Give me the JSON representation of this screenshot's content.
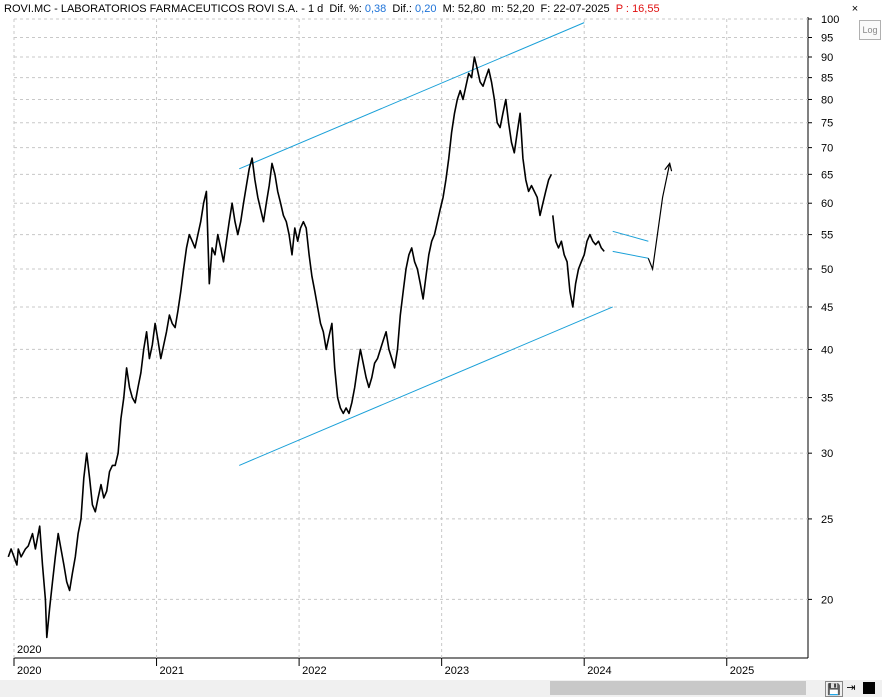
{
  "header": {
    "title": "ROVI.MC - LABORATORIOS FARMACEUTICOS ROVI S.A. -  1 d",
    "dif_pct_label": "Dif. %:",
    "dif_pct": "0,38",
    "dif_label": "Dif.:",
    "dif": "0,20",
    "max_label": "M:",
    "max": "52,80",
    "min_label": "m:",
    "min": "52,20",
    "date_label": "F:",
    "date": "22-07-2025",
    "p_label": "P :",
    "p": "16,55"
  },
  "controls": {
    "close": "×",
    "log": "Log",
    "save_icon": "save-icon",
    "pin_icon": "pin-icon"
  },
  "colors": {
    "price": "#000000",
    "trendline": "#1aa0d8",
    "grid": "#c8c8c8",
    "accent": "#1e73d8"
  },
  "chart_data": {
    "type": "line",
    "scale": "log",
    "ylim": [
      17,
      100
    ],
    "yticks": [
      20,
      25,
      30,
      35,
      40,
      45,
      50,
      55,
      60,
      65,
      70,
      75,
      80,
      85,
      90,
      95,
      100
    ],
    "xlim": [
      2020.0,
      2025.57
    ],
    "xticks": [
      {
        "x": 2020.0,
        "label": "2020"
      },
      {
        "x": 2021.0,
        "label": "2021"
      },
      {
        "x": 2022.0,
        "label": "2022"
      },
      {
        "x": 2023.0,
        "label": "2023"
      },
      {
        "x": 2024.0,
        "label": "2024"
      },
      {
        "x": 2025.0,
        "label": "2025"
      }
    ],
    "corner_label": "2020",
    "grid": true,
    "series": [
      {
        "points": [
          [
            1.96,
            22.5
          ],
          [
            1.98,
            23
          ],
          [
            2.0,
            22.5
          ],
          [
            2.02,
            22
          ],
          [
            2.03,
            23
          ],
          [
            2.05,
            22.5
          ],
          [
            2.08,
            23
          ],
          [
            2.1,
            23.2
          ],
          [
            2.13,
            24
          ],
          [
            2.15,
            23
          ],
          [
            2.18,
            24.5
          ],
          [
            2.2,
            22
          ],
          [
            2.22,
            20
          ],
          [
            2.23,
            18
          ],
          [
            2.25,
            19.5
          ],
          [
            2.27,
            21
          ],
          [
            2.29,
            22.5
          ],
          [
            2.31,
            24
          ],
          [
            2.33,
            23
          ],
          [
            2.35,
            22
          ],
          [
            2.37,
            21
          ],
          [
            2.39,
            20.5
          ],
          [
            2.41,
            21.5
          ],
          [
            2.43,
            22.5
          ],
          [
            2.45,
            24
          ],
          [
            2.47,
            25
          ],
          [
            2.49,
            28
          ],
          [
            2.51,
            30
          ],
          [
            2.53,
            28
          ],
          [
            2.55,
            26
          ],
          [
            2.57,
            25.5
          ],
          [
            2.59,
            26.5
          ],
          [
            2.61,
            27.5
          ],
          [
            2.63,
            26.5
          ],
          [
            2.65,
            27
          ],
          [
            2.67,
            28.5
          ],
          [
            2.69,
            29
          ],
          [
            2.71,
            29
          ],
          [
            2.73,
            30
          ],
          [
            2.75,
            33
          ],
          [
            2.77,
            35
          ],
          [
            2.79,
            38
          ],
          [
            2.81,
            36
          ],
          [
            2.83,
            35
          ],
          [
            2.85,
            34.5
          ],
          [
            2.87,
            36
          ],
          [
            2.89,
            37.5
          ],
          [
            2.91,
            40
          ],
          [
            2.93,
            42
          ],
          [
            2.95,
            39
          ],
          [
            2.97,
            40.5
          ],
          [
            2.99,
            43
          ],
          [
            3.01,
            41
          ],
          [
            3.03,
            39
          ],
          [
            3.05,
            40.5
          ],
          [
            3.07,
            42
          ],
          [
            3.09,
            44
          ],
          [
            3.11,
            43
          ],
          [
            3.13,
            42.5
          ],
          [
            3.15,
            44.5
          ],
          [
            3.17,
            47
          ],
          [
            3.19,
            50
          ],
          [
            3.21,
            53
          ],
          [
            3.23,
            55
          ],
          [
            3.25,
            54
          ],
          [
            3.27,
            53
          ],
          [
            3.29,
            55
          ],
          [
            3.31,
            57
          ],
          [
            3.33,
            60
          ],
          [
            3.35,
            62
          ],
          [
            3.37,
            48
          ],
          [
            3.39,
            53
          ],
          [
            3.41,
            52
          ],
          [
            3.43,
            55
          ],
          [
            3.45,
            53
          ],
          [
            3.47,
            51
          ],
          [
            3.49,
            54
          ],
          [
            3.51,
            57
          ],
          [
            3.53,
            60
          ],
          [
            3.55,
            57
          ],
          [
            3.57,
            55
          ],
          [
            3.59,
            57
          ],
          [
            3.61,
            60
          ],
          [
            3.63,
            63
          ],
          [
            3.65,
            66
          ],
          [
            3.67,
            68
          ],
          [
            3.69,
            64
          ],
          [
            3.71,
            61
          ],
          [
            3.73,
            59
          ],
          [
            3.75,
            57
          ],
          [
            3.77,
            60
          ],
          [
            3.79,
            63
          ],
          [
            3.81,
            67
          ],
          [
            3.83,
            65
          ],
          [
            3.85,
            62
          ],
          [
            3.87,
            60
          ],
          [
            3.89,
            58
          ],
          [
            3.91,
            57
          ],
          [
            3.93,
            55
          ],
          [
            3.95,
            52
          ],
          [
            3.97,
            56
          ],
          [
            3.99,
            54
          ],
          [
            4.01,
            56
          ],
          [
            4.03,
            57
          ],
          [
            4.05,
            56
          ],
          [
            4.07,
            52
          ],
          [
            4.09,
            49
          ],
          [
            4.11,
            47
          ],
          [
            4.13,
            45
          ],
          [
            4.15,
            43
          ],
          [
            4.17,
            42
          ],
          [
            4.19,
            40
          ],
          [
            4.21,
            41.5
          ],
          [
            4.23,
            43
          ],
          [
            4.25,
            38
          ],
          [
            4.27,
            35
          ],
          [
            4.29,
            34
          ],
          [
            4.31,
            33.5
          ],
          [
            4.33,
            34
          ],
          [
            4.35,
            33.5
          ],
          [
            4.37,
            34.5
          ],
          [
            4.39,
            36
          ],
          [
            4.41,
            38
          ],
          [
            4.43,
            40
          ],
          [
            4.45,
            38.5
          ],
          [
            4.47,
            37
          ],
          [
            4.49,
            36
          ],
          [
            4.51,
            37
          ],
          [
            4.53,
            38.5
          ],
          [
            4.55,
            39
          ],
          [
            4.57,
            40
          ],
          [
            4.59,
            41
          ],
          [
            4.61,
            42
          ],
          [
            4.63,
            40
          ],
          [
            4.65,
            39
          ],
          [
            4.67,
            38
          ],
          [
            4.69,
            40
          ],
          [
            4.71,
            44
          ],
          [
            4.73,
            47
          ],
          [
            4.75,
            50
          ],
          [
            4.77,
            52
          ],
          [
            4.79,
            53
          ],
          [
            4.81,
            51
          ],
          [
            4.83,
            50
          ],
          [
            4.85,
            48
          ],
          [
            4.87,
            46
          ],
          [
            4.89,
            49
          ],
          [
            4.91,
            52
          ],
          [
            4.93,
            54
          ],
          [
            4.95,
            55
          ],
          [
            4.97,
            57
          ],
          [
            4.99,
            59
          ],
          [
            5.01,
            61
          ],
          [
            5.03,
            64
          ],
          [
            5.05,
            68
          ],
          [
            5.07,
            73
          ],
          [
            5.09,
            77
          ],
          [
            5.11,
            80
          ],
          [
            5.13,
            82
          ],
          [
            5.15,
            80
          ],
          [
            5.17,
            83
          ],
          [
            5.19,
            86
          ],
          [
            5.21,
            85
          ],
          [
            5.23,
            90
          ],
          [
            5.25,
            87
          ],
          [
            5.27,
            84
          ],
          [
            5.29,
            83
          ],
          [
            5.31,
            85
          ],
          [
            5.33,
            87
          ],
          [
            5.35,
            84
          ],
          [
            5.37,
            80
          ],
          [
            5.39,
            75
          ],
          [
            5.41,
            74
          ],
          [
            5.43,
            77
          ],
          [
            5.45,
            80
          ],
          [
            5.47,
            75
          ],
          [
            5.49,
            71
          ],
          [
            5.51,
            69
          ],
          [
            5.53,
            73
          ],
          [
            5.55,
            77
          ],
          [
            5.57,
            68
          ],
          [
            5.59,
            64
          ],
          [
            5.61,
            62
          ],
          [
            5.63,
            63
          ],
          [
            5.65,
            62
          ],
          [
            5.67,
            61
          ],
          [
            5.69,
            58
          ],
          [
            5.71,
            60
          ],
          [
            5.73,
            62
          ],
          [
            5.75,
            64
          ],
          [
            5.77,
            65
          ]
        ]
      },
      {
        "points": [
          [
            5.78,
            58
          ],
          [
            5.8,
            54
          ],
          [
            5.82,
            53
          ],
          [
            5.84,
            54
          ],
          [
            5.86,
            52
          ],
          [
            5.88,
            51
          ],
          [
            5.9,
            47
          ],
          [
            5.92,
            45
          ],
          [
            5.94,
            48
          ],
          [
            5.96,
            50
          ],
          [
            5.98,
            51
          ],
          [
            6.0,
            52
          ],
          [
            6.02,
            54
          ],
          [
            6.04,
            55
          ],
          [
            6.06,
            54
          ],
          [
            6.08,
            53.5
          ],
          [
            6.1,
            54
          ],
          [
            6.12,
            53
          ],
          [
            6.14,
            52.5
          ]
        ]
      }
    ],
    "trendlines": [
      {
        "from": [
          2021.58,
          66
        ],
        "to": [
          2024.0,
          99
        ]
      },
      {
        "from": [
          2021.58,
          29
        ],
        "to": [
          2024.2,
          45
        ]
      },
      {
        "from": [
          2024.2,
          55.5
        ],
        "to": [
          2024.45,
          54
        ]
      },
      {
        "from": [
          2024.2,
          52.5
        ],
        "to": [
          2024.45,
          51.5
        ]
      }
    ],
    "arrow": {
      "points": [
        [
          2024.45,
          51.5
        ],
        [
          2024.48,
          50
        ],
        [
          2024.55,
          61
        ],
        [
          2024.6,
          67
        ]
      ]
    }
  }
}
